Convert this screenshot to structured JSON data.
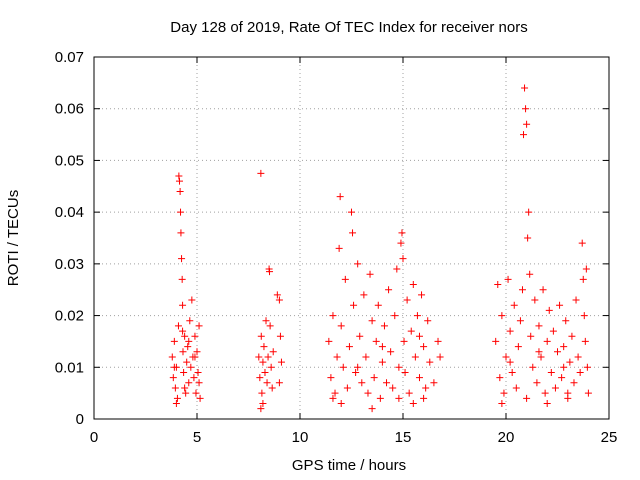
{
  "chart_data": {
    "type": "scatter",
    "title": "Day 128 of 2019, Rate Of TEC Index for receiver nors",
    "xlabel": "GPS time / hours",
    "ylabel": "ROTI / TECUs",
    "xlim": [
      0,
      25
    ],
    "ylim": [
      0,
      0.07
    ],
    "xticks": [
      0,
      5,
      10,
      15,
      20,
      25
    ],
    "xtick_labels": [
      "0",
      "5",
      "10",
      "15",
      "20",
      "25"
    ],
    "yticks": [
      0,
      0.01,
      0.02,
      0.03,
      0.04,
      0.05,
      0.06,
      0.07
    ],
    "ytick_labels": [
      "0",
      "0.01",
      "0.02",
      "0.03",
      "0.04",
      "0.05",
      "0.06",
      "0.07"
    ],
    "grid": true,
    "marker": "plus",
    "color": "#ff0000",
    "points": [
      [
        3.8,
        0.012
      ],
      [
        3.85,
        0.008
      ],
      [
        3.9,
        0.015
      ],
      [
        3.95,
        0.006
      ],
      [
        4.0,
        0.01
      ],
      [
        4.05,
        0.004
      ],
      [
        4.1,
        0.018
      ],
      [
        4.12,
        0.047
      ],
      [
        4.15,
        0.046
      ],
      [
        4.18,
        0.044
      ],
      [
        4.2,
        0.04
      ],
      [
        4.22,
        0.036
      ],
      [
        4.25,
        0.031
      ],
      [
        4.28,
        0.027
      ],
      [
        4.3,
        0.022
      ],
      [
        4.32,
        0.013
      ],
      [
        4.35,
        0.009
      ],
      [
        4.4,
        0.016
      ],
      [
        4.45,
        0.005
      ],
      [
        4.5,
        0.011
      ],
      [
        4.55,
        0.014
      ],
      [
        4.6,
        0.007
      ],
      [
        4.65,
        0.019
      ],
      [
        4.7,
        0.01
      ],
      [
        4.75,
        0.023
      ],
      [
        4.8,
        0.012
      ],
      [
        4.85,
        0.008
      ],
      [
        4.9,
        0.016
      ],
      [
        4.95,
        0.005
      ],
      [
        5.0,
        0.013
      ],
      [
        5.05,
        0.009
      ],
      [
        5.1,
        0.018
      ],
      [
        5.15,
        0.004
      ],
      [
        4.0,
        0.003
      ],
      [
        4.3,
        0.017
      ],
      [
        4.6,
        0.015
      ],
      [
        4.9,
        0.012
      ],
      [
        3.9,
        0.01
      ],
      [
        4.4,
        0.006
      ],
      [
        5.1,
        0.007
      ],
      [
        8.0,
        0.012
      ],
      [
        8.05,
        0.008
      ],
      [
        8.1,
        0.0475
      ],
      [
        8.12,
        0.016
      ],
      [
        8.15,
        0.005
      ],
      [
        8.2,
        0.011
      ],
      [
        8.25,
        0.014
      ],
      [
        8.3,
        0.009
      ],
      [
        8.35,
        0.019
      ],
      [
        8.4,
        0.007
      ],
      [
        8.45,
        0.012
      ],
      [
        8.5,
        0.029
      ],
      [
        8.52,
        0.0285
      ],
      [
        8.55,
        0.018
      ],
      [
        8.6,
        0.01
      ],
      [
        8.65,
        0.006
      ],
      [
        8.7,
        0.013
      ],
      [
        8.9,
        0.024
      ],
      [
        9.0,
        0.023
      ],
      [
        9.05,
        0.016
      ],
      [
        9.1,
        0.011
      ],
      [
        9.0,
        0.007
      ],
      [
        8.2,
        0.003
      ],
      [
        8.1,
        0.002
      ],
      [
        11.4,
        0.015
      ],
      [
        11.5,
        0.008
      ],
      [
        11.6,
        0.02
      ],
      [
        11.7,
        0.005
      ],
      [
        11.8,
        0.012
      ],
      [
        11.9,
        0.033
      ],
      [
        11.95,
        0.043
      ],
      [
        12.0,
        0.018
      ],
      [
        12.1,
        0.01
      ],
      [
        12.2,
        0.027
      ],
      [
        12.3,
        0.006
      ],
      [
        12.4,
        0.014
      ],
      [
        12.5,
        0.04
      ],
      [
        12.55,
        0.036
      ],
      [
        12.6,
        0.022
      ],
      [
        12.7,
        0.009
      ],
      [
        12.8,
        0.03
      ],
      [
        12.9,
        0.016
      ],
      [
        13.0,
        0.007
      ],
      [
        13.1,
        0.024
      ],
      [
        13.2,
        0.012
      ],
      [
        13.3,
        0.005
      ],
      [
        13.4,
        0.028
      ],
      [
        13.5,
        0.019
      ],
      [
        13.6,
        0.008
      ],
      [
        13.7,
        0.015
      ],
      [
        13.8,
        0.022
      ],
      [
        13.9,
        0.004
      ],
      [
        14.0,
        0.011
      ],
      [
        14.1,
        0.018
      ],
      [
        14.2,
        0.007
      ],
      [
        14.3,
        0.025
      ],
      [
        14.4,
        0.013
      ],
      [
        14.5,
        0.006
      ],
      [
        14.6,
        0.02
      ],
      [
        14.7,
        0.029
      ],
      [
        14.8,
        0.01
      ],
      [
        14.9,
        0.034
      ],
      [
        14.95,
        0.036
      ],
      [
        15.0,
        0.031
      ],
      [
        15.05,
        0.015
      ],
      [
        15.1,
        0.009
      ],
      [
        15.2,
        0.023
      ],
      [
        15.3,
        0.005
      ],
      [
        15.4,
        0.017
      ],
      [
        15.5,
        0.026
      ],
      [
        15.6,
        0.012
      ],
      [
        15.7,
        0.02
      ],
      [
        15.8,
        0.008
      ],
      [
        15.9,
        0.024
      ],
      [
        16.0,
        0.014
      ],
      [
        16.1,
        0.006
      ],
      [
        16.2,
        0.019
      ],
      [
        16.3,
        0.011
      ],
      [
        16.5,
        0.007
      ],
      [
        16.7,
        0.015
      ],
      [
        16.8,
        0.012
      ],
      [
        12.0,
        0.003
      ],
      [
        13.5,
        0.002
      ],
      [
        14.8,
        0.004
      ],
      [
        15.5,
        0.003
      ],
      [
        16.0,
        0.004
      ],
      [
        11.6,
        0.004
      ],
      [
        12.8,
        0.01
      ],
      [
        14.0,
        0.014
      ],
      [
        15.8,
        0.016
      ],
      [
        19.5,
        0.015
      ],
      [
        19.6,
        0.026
      ],
      [
        19.7,
        0.008
      ],
      [
        19.8,
        0.02
      ],
      [
        19.9,
        0.005
      ],
      [
        20.0,
        0.012
      ],
      [
        20.1,
        0.027
      ],
      [
        20.2,
        0.017
      ],
      [
        20.3,
        0.009
      ],
      [
        20.4,
        0.022
      ],
      [
        20.5,
        0.006
      ],
      [
        20.6,
        0.014
      ],
      [
        20.7,
        0.019
      ],
      [
        20.8,
        0.025
      ],
      [
        20.85,
        0.055
      ],
      [
        20.9,
        0.064
      ],
      [
        20.95,
        0.06
      ],
      [
        21.0,
        0.057
      ],
      [
        21.05,
        0.035
      ],
      [
        21.1,
        0.04
      ],
      [
        21.15,
        0.028
      ],
      [
        21.2,
        0.016
      ],
      [
        21.3,
        0.01
      ],
      [
        21.4,
        0.023
      ],
      [
        21.5,
        0.007
      ],
      [
        21.6,
        0.018
      ],
      [
        21.7,
        0.012
      ],
      [
        21.8,
        0.025
      ],
      [
        21.9,
        0.005
      ],
      [
        22.0,
        0.015
      ],
      [
        22.1,
        0.021
      ],
      [
        22.2,
        0.009
      ],
      [
        22.3,
        0.017
      ],
      [
        22.4,
        0.006
      ],
      [
        22.5,
        0.013
      ],
      [
        22.6,
        0.022
      ],
      [
        22.7,
        0.008
      ],
      [
        22.8,
        0.014
      ],
      [
        22.9,
        0.019
      ],
      [
        23.0,
        0.005
      ],
      [
        23.1,
        0.011
      ],
      [
        23.2,
        0.016
      ],
      [
        23.3,
        0.007
      ],
      [
        23.4,
        0.023
      ],
      [
        23.5,
        0.012
      ],
      [
        23.6,
        0.009
      ],
      [
        23.7,
        0.034
      ],
      [
        23.75,
        0.027
      ],
      [
        23.8,
        0.02
      ],
      [
        23.85,
        0.015
      ],
      [
        23.9,
        0.029
      ],
      [
        23.95,
        0.01
      ],
      [
        24.0,
        0.005
      ],
      [
        19.8,
        0.003
      ],
      [
        21.0,
        0.004
      ],
      [
        22.0,
        0.003
      ],
      [
        23.0,
        0.004
      ],
      [
        20.2,
        0.011
      ],
      [
        21.6,
        0.013
      ],
      [
        22.8,
        0.01
      ]
    ]
  }
}
